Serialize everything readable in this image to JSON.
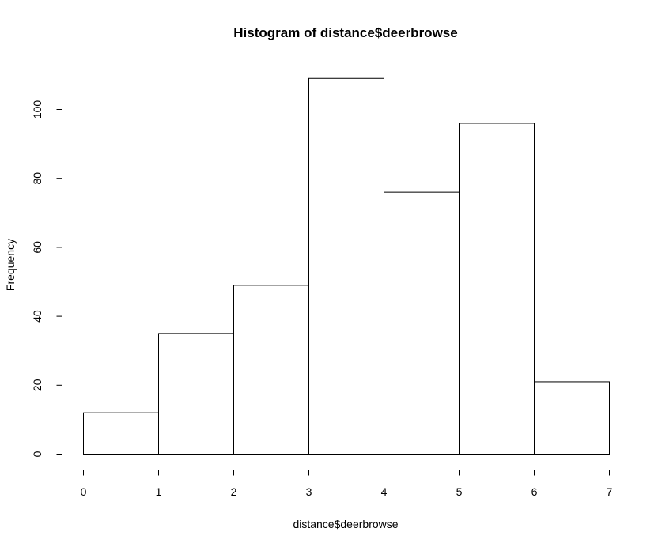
{
  "chart_data": {
    "type": "bar",
    "title": "Histogram of distance$deerbrowse",
    "xlabel": "distance$deerbrowse",
    "ylabel": "Frequency",
    "bins": [
      {
        "start": 0,
        "end": 1,
        "count": 12
      },
      {
        "start": 1,
        "end": 2,
        "count": 35
      },
      {
        "start": 2,
        "end": 3,
        "count": 49
      },
      {
        "start": 3,
        "end": 4,
        "count": 109
      },
      {
        "start": 4,
        "end": 5,
        "count": 76
      },
      {
        "start": 5,
        "end": 6,
        "count": 96
      },
      {
        "start": 6,
        "end": 7,
        "count": 21
      }
    ],
    "xlim": [
      0,
      7
    ],
    "ylim": [
      0,
      110
    ],
    "x_ticks": [
      0,
      1,
      2,
      3,
      4,
      5,
      6,
      7
    ],
    "y_ticks": [
      0,
      20,
      40,
      60,
      80,
      100
    ],
    "grid": false,
    "colors": {
      "bar_fill": "#ffffff",
      "bar_stroke": "#000000"
    }
  }
}
